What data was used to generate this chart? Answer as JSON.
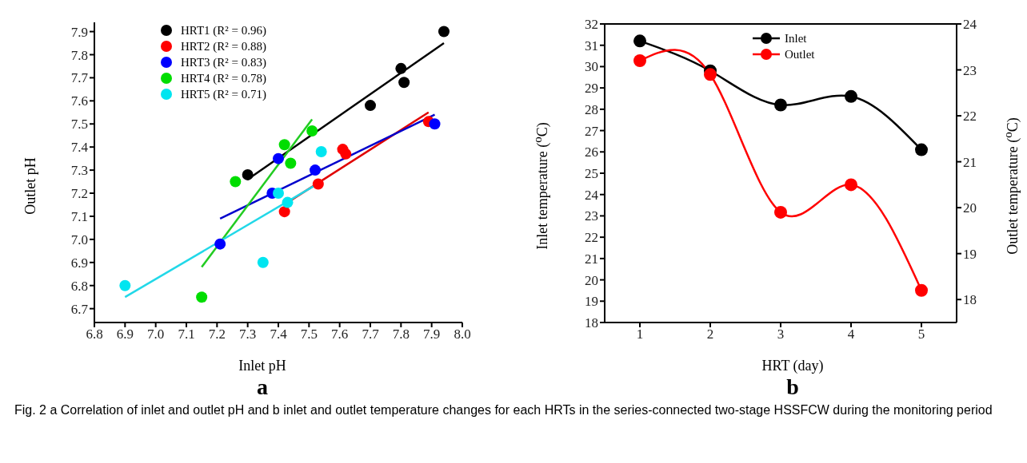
{
  "chart_data": [
    {
      "type": "scatter",
      "title": "a",
      "xlabel": "Inlet pH",
      "ylabel": "Outlet pH",
      "xlim": [
        6.8,
        8.0
      ],
      "ylim": [
        6.64,
        7.94
      ],
      "xticks": [
        6.8,
        6.9,
        {
          "value": 7.0,
          "label": "7.0"
        },
        7.1,
        7.2,
        7.3,
        7.4,
        7.5,
        7.6,
        7.7,
        7.8,
        7.9,
        {
          "value": 8.0,
          "label": "8.0"
        }
      ],
      "yticks": [
        6.7,
        6.8,
        6.9,
        {
          "value": 7.0,
          "label": "7.0"
        },
        7.1,
        7.2,
        7.3,
        7.4,
        7.5,
        7.6,
        7.7,
        7.8,
        7.9
      ],
      "legend": "top left",
      "marker": "circle",
      "grid": false,
      "annotations": [
        "Fig. 2 a Correlation of inlet and outlet pH and b inlet and outlet temperature changes for each HRTs in the series-connected two-stage HSSFCW during the monitoring period"
      ],
      "series": [
        {
          "name": "HRT1 (R² = 0.96)",
          "color": "#000000",
          "x": [
            7.3,
            7.7,
            7.8,
            7.81,
            7.94
          ],
          "values": [
            7.28,
            7.58,
            7.74,
            7.68,
            7.9
          ]
        },
        {
          "name": "HRT2 (R² = 0.88)",
          "color": "#ff0000",
          "x": [
            7.42,
            7.53,
            7.61,
            7.62,
            7.89
          ],
          "values": [
            7.12,
            7.24,
            7.39,
            7.37,
            7.51
          ]
        },
        {
          "name": "HRT3 (R² = 0.83)",
          "color": "#0000ff",
          "x": [
            7.21,
            7.38,
            7.4,
            7.52,
            7.91
          ],
          "values": [
            6.98,
            7.2,
            7.35,
            7.3,
            7.5
          ]
        },
        {
          "name": "HRT4 (R² = 0.78)",
          "color": "#00dd00",
          "x": [
            7.15,
            7.26,
            7.42,
            7.44,
            7.51
          ],
          "values": [
            6.75,
            7.25,
            7.41,
            7.33,
            7.47
          ]
        },
        {
          "name": "HRT5 (R² = 0.71)",
          "color": "#00e5f0",
          "x": [
            6.9,
            7.35,
            7.4,
            7.43,
            7.54
          ],
          "values": [
            6.8,
            6.9,
            7.2,
            7.16,
            7.38
          ]
        },
        {
          "type": "line",
          "marker": "none",
          "color": "#000000",
          "x": [
            7.3,
            7.94
          ],
          "values": [
            7.26,
            7.85
          ]
        },
        {
          "type": "line",
          "marker": "none",
          "color": "#e00000",
          "x": [
            7.43,
            7.89
          ],
          "values": [
            7.16,
            7.55
          ]
        },
        {
          "type": "line",
          "marker": "none",
          "color": "#0000cc",
          "x": [
            7.21,
            7.91
          ],
          "values": [
            7.09,
            7.54
          ]
        },
        {
          "type": "line",
          "marker": "none",
          "color": "#22cc22",
          "x": [
            7.15,
            7.51
          ],
          "values": [
            6.88,
            7.52
          ]
        },
        {
          "type": "line",
          "marker": "none",
          "color": "#22d8e8",
          "x": [
            6.9,
            7.54
          ],
          "values": [
            6.75,
            7.25
          ]
        }
      ]
    },
    {
      "type": "line",
      "title": "b",
      "xlabel": "HRT (day)",
      "ylabel": "Inlet temperature ($^{o}$C)",
      "y2label": "Outlet temperature ($^{o}$C)",
      "xlim": [
        0.5,
        5.5
      ],
      "xticks": [
        1,
        2,
        3,
        4,
        5
      ],
      "ylim": [
        18,
        32
      ],
      "yticks": [
        18,
        19,
        20,
        21,
        22,
        23,
        24,
        25,
        26,
        27,
        28,
        29,
        30,
        31,
        32
      ],
      "y2lim": [
        17.5,
        24
      ],
      "y2ticks": [
        18,
        19,
        20,
        21,
        22,
        23,
        24
      ],
      "legend": "top",
      "marker": "circle",
      "line_style": "solid",
      "grid": false,
      "series": [
        {
          "name": "Inlet",
          "color": "#000000",
          "x": [
            1,
            2,
            3,
            4,
            5
          ],
          "values": [
            31.2,
            29.8,
            28.2,
            28.6,
            26.1
          ]
        },
        {
          "name": "Outlet",
          "color": "#ff0000",
          "axis": "y2",
          "x": [
            1,
            2,
            3,
            4,
            5
          ],
          "values": [
            23.2,
            22.9,
            19.9,
            20.5,
            18.2
          ]
        }
      ]
    }
  ]
}
